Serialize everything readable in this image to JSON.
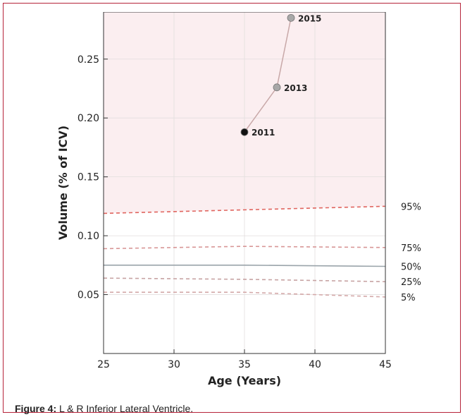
{
  "caption": {
    "label": "Figure 4:",
    "text": " L & R Inferior Lateral Ventricle."
  },
  "chart_data": {
    "type": "line",
    "title": "",
    "xlabel": "Age (Years)",
    "ylabel": "Volume (% of ICV)",
    "xlim": [
      25,
      45
    ],
    "ylim": [
      0.0,
      0.29
    ],
    "xticks": [
      25,
      30,
      35,
      40,
      45
    ],
    "yticks": [
      0.05,
      0.1,
      0.15,
      0.2,
      0.25
    ],
    "ytick_labels": [
      "0.05",
      "0.10",
      "0.15",
      "0.20",
      "0.25"
    ],
    "grid": true,
    "shaded_region": {
      "from_series": "95%",
      "to": "top",
      "color": "#fbeef0"
    },
    "percentile_lines": [
      {
        "name": "95%",
        "color": "#e0655f",
        "dashed": true,
        "x": [
          25,
          35,
          45
        ],
        "y": [
          0.119,
          0.122,
          0.125
        ]
      },
      {
        "name": "75%",
        "color": "#d89696",
        "dashed": true,
        "x": [
          25,
          35,
          45
        ],
        "y": [
          0.089,
          0.091,
          0.09
        ]
      },
      {
        "name": "50%",
        "color": "#9aa4aa",
        "dashed": false,
        "x": [
          25,
          35,
          45
        ],
        "y": [
          0.075,
          0.075,
          0.074
        ]
      },
      {
        "name": "25%",
        "color": "#c7a3a3",
        "dashed": true,
        "x": [
          25,
          35,
          45
        ],
        "y": [
          0.064,
          0.063,
          0.061
        ]
      },
      {
        "name": "5%",
        "color": "#d4a9a9",
        "dashed": true,
        "x": [
          25,
          35,
          45
        ],
        "y": [
          0.052,
          0.052,
          0.048
        ]
      }
    ],
    "patient_series": {
      "color": "#c8a8a8",
      "points": [
        {
          "label": "2011",
          "x": 35.0,
          "y": 0.188,
          "color": "#111111"
        },
        {
          "label": "2013",
          "x": 37.3,
          "y": 0.226,
          "color": "#a8a8a8"
        },
        {
          "label": "2015",
          "x": 38.3,
          "y": 0.285,
          "color": "#a8a8a8"
        }
      ]
    }
  }
}
